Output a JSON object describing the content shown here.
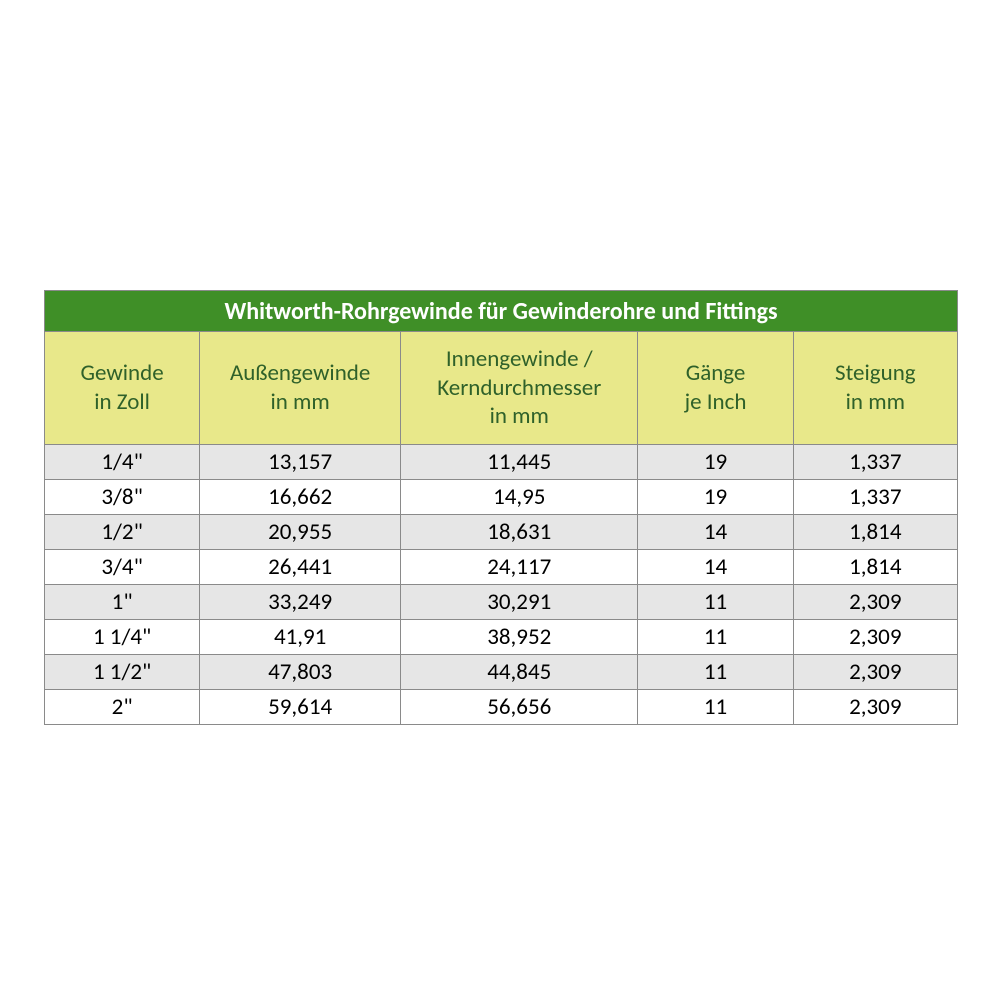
{
  "table": {
    "type": "table",
    "title": "Whitworth-Rohrgewinde für Gewinderohre und Fittings",
    "title_bg": "#3f8f27",
    "title_color": "#ffffff",
    "title_fontsize": 24,
    "header_bg": "#e8e88a",
    "header_color": "#2f612a",
    "header_fontsize": 23,
    "cell_fontsize": 23,
    "border_color": "#8a8a8a",
    "row_alt_bg": "#e6e6e6",
    "row_bg": "#ffffff",
    "column_widths_pct": [
      17,
      22,
      26,
      17,
      18
    ],
    "columns": [
      {
        "line1": "Gewinde",
        "line2": "in Zoll"
      },
      {
        "line1": "Außengewinde",
        "line2": "in mm"
      },
      {
        "line1": "Innengewinde /",
        "line2": "Kerndurchmesser",
        "line3": "in mm"
      },
      {
        "line1": "Gänge",
        "line2": "je Inch"
      },
      {
        "line1": "Steigung",
        "line2": "in mm"
      }
    ],
    "rows": [
      [
        "1/4\"",
        "13,157",
        "11,445",
        "19",
        "1,337"
      ],
      [
        "3/8\"",
        "16,662",
        "14,95",
        "19",
        "1,337"
      ],
      [
        "1/2\"",
        "20,955",
        "18,631",
        "14",
        "1,814"
      ],
      [
        "3/4\"",
        "26,441",
        "24,117",
        "14",
        "1,814"
      ],
      [
        "1\"",
        "33,249",
        "30,291",
        "11",
        "2,309"
      ],
      [
        "1 1/4\"",
        "41,91",
        "38,952",
        "11",
        "2,309"
      ],
      [
        "1 1/2\"",
        "47,803",
        "44,845",
        "11",
        "2,309"
      ],
      [
        "2\"",
        "59,614",
        "56,656",
        "11",
        "2,309"
      ]
    ]
  }
}
